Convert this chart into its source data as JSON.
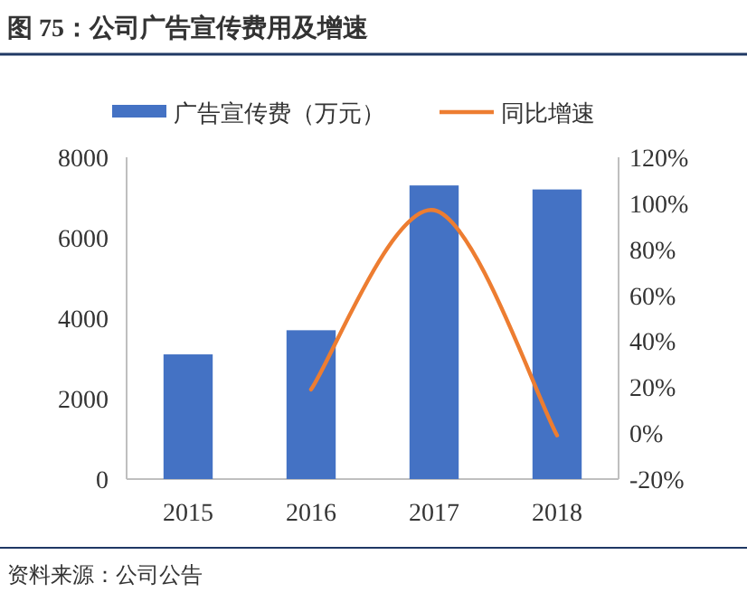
{
  "chart_data": {
    "type": "bar",
    "title": "图 75：公司广告宣传费用及增速",
    "categories": [
      "2015",
      "2016",
      "2017",
      "2018"
    ],
    "series": [
      {
        "name": "广告宣传费（万元）",
        "color": "#4472c4",
        "values": [
          3100,
          3700,
          7300,
          7200
        ]
      },
      {
        "name": "同比增速",
        "type": "line",
        "axis": "y2",
        "color": "#ed7d31",
        "values": [
          null,
          19,
          97,
          -1
        ]
      }
    ],
    "ylim": [
      0,
      8000
    ],
    "yticks": [
      0,
      2000,
      4000,
      6000,
      8000
    ],
    "y2lim": [
      -20,
      120
    ],
    "y2ticks": [
      {
        "value": -20,
        "label": "-20%"
      },
      {
        "value": 0,
        "label": "0%"
      },
      {
        "value": 20,
        "label": "20%"
      },
      {
        "value": 40,
        "label": "40%"
      },
      {
        "value": 60,
        "label": "60%"
      },
      {
        "value": 80,
        "label": "80%"
      },
      {
        "value": 100,
        "label": "100%"
      },
      {
        "value": 120,
        "label": "120%"
      }
    ],
    "legend": "top",
    "annotations": [
      "资料来源：公司公告"
    ]
  }
}
